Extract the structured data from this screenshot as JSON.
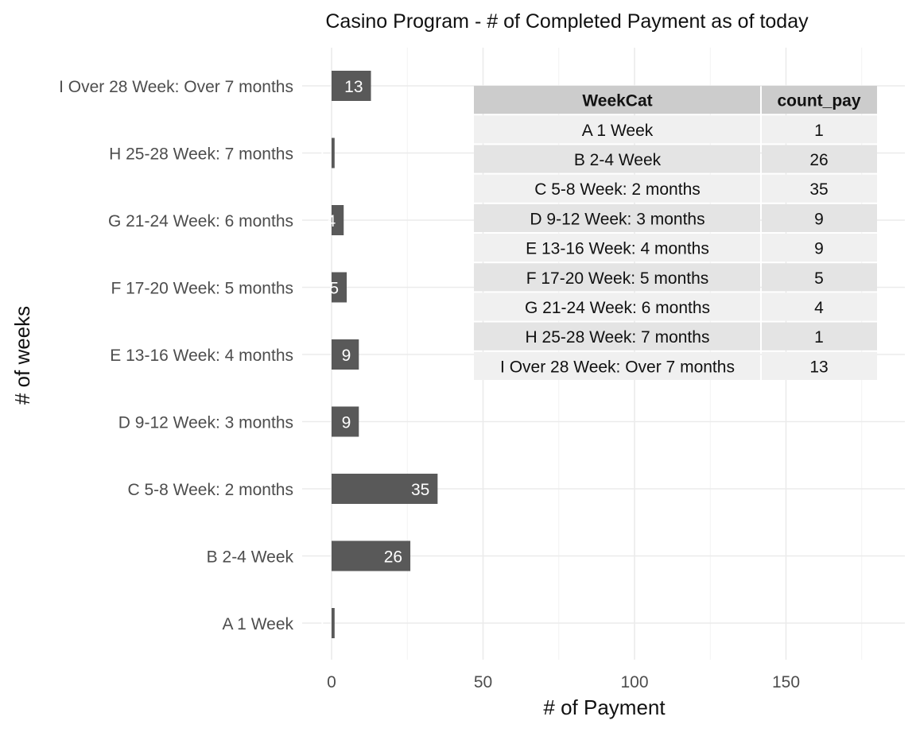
{
  "chart_data": {
    "type": "bar",
    "orientation": "horizontal",
    "title": "Casino Program - # of Completed Payment as of today",
    "xlabel": "# of Payment",
    "ylabel": "# of weeks",
    "xlim": [
      -7,
      184
    ],
    "x_ticks": [
      0,
      50,
      100,
      150
    ],
    "categories": [
      "A 1 Week",
      "B 2-4 Week",
      "C 5-8 Week: 2 months",
      "D 9-12 Week: 3 months",
      "E 13-16 Week: 4 months",
      "F 17-20 Week: 5 months",
      "G 21-24 Week: 6 months",
      "H 25-28 Week: 7 months",
      "I Over 28 Week: Over 7 months"
    ],
    "values": [
      1,
      26,
      35,
      9,
      9,
      5,
      4,
      1,
      13
    ],
    "bar_color": "#595959",
    "bar_label_color": "#ffffff",
    "grid": true,
    "table": {
      "columns": [
        "WeekCat",
        "count_pay"
      ],
      "rows": [
        [
          "A 1 Week",
          "1"
        ],
        [
          "B 2-4 Week",
          "26"
        ],
        [
          "C 5-8 Week: 2 months",
          "35"
        ],
        [
          "D 9-12 Week: 3 months",
          "9"
        ],
        [
          "E 13-16 Week: 4 months",
          "9"
        ],
        [
          "F 17-20 Week: 5 months",
          "5"
        ],
        [
          "G 21-24 Week: 6 months",
          "4"
        ],
        [
          "H 25-28 Week: 7 months",
          "1"
        ],
        [
          "I Over 28 Week: Over 7 months",
          "13"
        ]
      ],
      "header_fill": "#cccccc",
      "row_fills": [
        "#f0f0f0",
        "#e4e4e4"
      ]
    }
  }
}
